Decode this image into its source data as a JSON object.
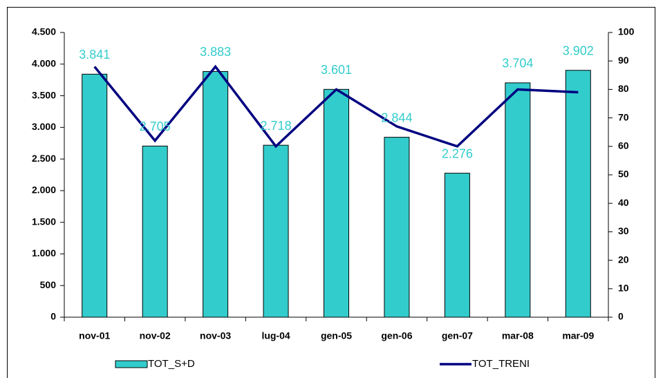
{
  "chart_data": {
    "type": "bar",
    "categories": [
      "nov-01",
      "nov-02",
      "nov-03",
      "lug-04",
      "gen-05",
      "gen-06",
      "gen-07",
      "mar-08",
      "mar-09"
    ],
    "series": [
      {
        "name": "TOT_S+D",
        "type": "bar",
        "color": "#33cccc",
        "values": [
          3841,
          2705,
          3883,
          2718,
          3601,
          2844,
          2276,
          3704,
          3902
        ],
        "value_labels": [
          "3.841",
          "2.705",
          "3.883",
          "2.718",
          "3.601",
          "2.844",
          "2.276",
          "3.704",
          "3.902"
        ]
      },
      {
        "name": "TOT_TRENI",
        "type": "line",
        "color": "#000080",
        "axis": "y2",
        "values": [
          88,
          62,
          88,
          60,
          80,
          67,
          60,
          80,
          79
        ]
      }
    ],
    "ylim": [
      0,
      4500
    ],
    "yticks": [
      0,
      500,
      {
        "value": 1000,
        "label": "1.000"
      },
      {
        "value": 1500,
        "label": "1.500"
      },
      {
        "value": 2000,
        "label": "2.000"
      },
      {
        "value": 2500,
        "label": "2.500"
      },
      {
        "value": 3000,
        "label": "3.000"
      },
      {
        "value": 3500,
        "label": "3.500"
      },
      {
        "value": 4000,
        "label": "4.000"
      },
      {
        "value": 4500,
        "label": "4.500"
      }
    ],
    "y2lim": [
      0,
      100
    ],
    "y2ticks": [
      0,
      10,
      20,
      30,
      40,
      50,
      60,
      70,
      80,
      90,
      100
    ],
    "grid": false,
    "legend": "bottom"
  }
}
